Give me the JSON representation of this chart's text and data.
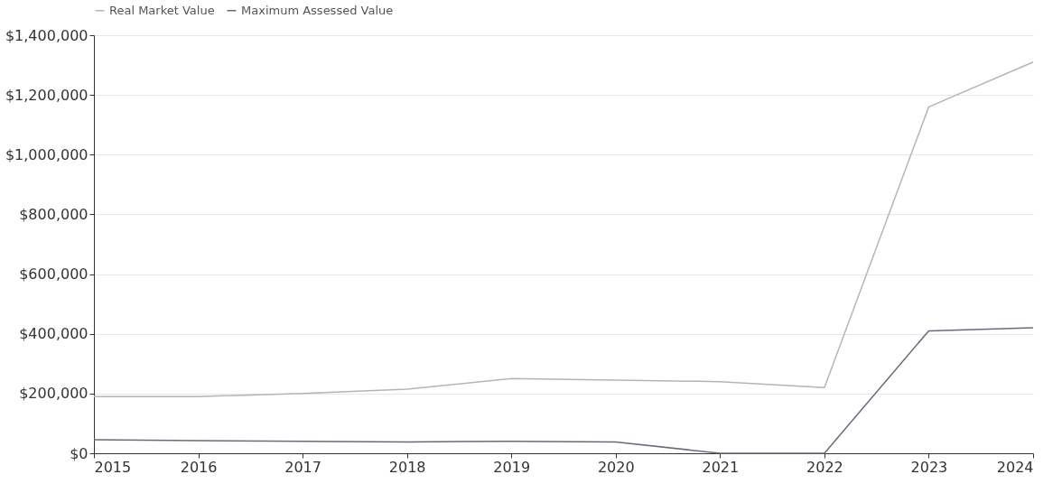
{
  "chart_data": {
    "type": "line",
    "x": [
      2015,
      2016,
      2017,
      2018,
      2019,
      2020,
      2021,
      2022,
      2023,
      2024
    ],
    "series": [
      {
        "name": "Real Market Value",
        "color": "#b4b4bc",
        "values": [
          190000,
          190000,
          200000,
          215000,
          250000,
          245000,
          240000,
          220000,
          1160000,
          1310000
        ]
      },
      {
        "name": "Maximum Assessed Value",
        "color": "#6a6a7c",
        "values": [
          45000,
          42000,
          40000,
          38000,
          40000,
          38000,
          0,
          0,
          410000,
          420000
        ]
      }
    ],
    "xlim": [
      2015,
      2024
    ],
    "xticks": [
      2015,
      2016,
      2017,
      2018,
      2019,
      2020,
      2021,
      2022,
      2023,
      2024
    ],
    "ylim": [
      0,
      1400000
    ],
    "yticks": [
      {
        "value": 0,
        "label": "$0"
      },
      {
        "value": 200000,
        "label": "$200,000"
      },
      {
        "value": 400000,
        "label": "$400,000"
      },
      {
        "value": 600000,
        "label": "$600,000"
      },
      {
        "value": 800000,
        "label": "$800,000"
      },
      {
        "value": 1000000,
        "label": "$1,000,000"
      },
      {
        "value": 1200000,
        "label": "$1,200,000"
      },
      {
        "value": 1400000,
        "label": "$1,400,000"
      }
    ],
    "grid": "y",
    "legend": "top left",
    "marker": "none",
    "line_style": "solid"
  }
}
